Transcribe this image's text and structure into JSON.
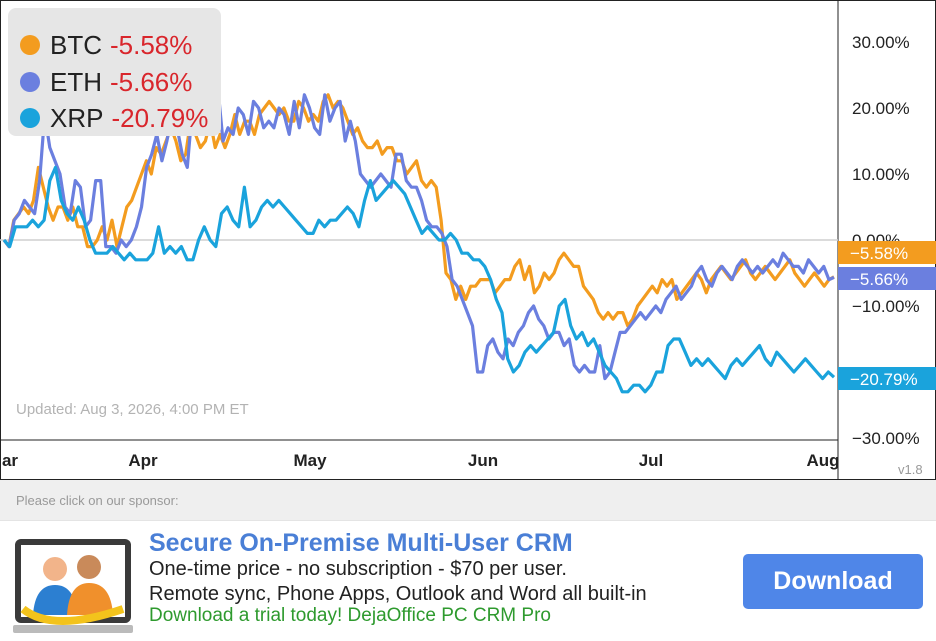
{
  "chart_data": {
    "type": "line",
    "x_tick_labels": [
      "ar",
      "Apr",
      "May",
      "Jun",
      "Jul",
      "Aug"
    ],
    "y_tick_labels": [
      "30.00%",
      "20.00%",
      "10.00%",
      "0.00%",
      "−10.00%",
      "−30.00%"
    ],
    "ylim": [
      -30,
      30
    ],
    "y_ticks": [
      30,
      20,
      10,
      0,
      -10,
      -30
    ],
    "reference_line": 0,
    "legend_placement": "top-left",
    "series": [
      {
        "name": "BTC",
        "color": "#f39c1f",
        "final_label": "−5.58%",
        "legend_value": "-5.58%",
        "values": [
          0,
          -1,
          3,
          4,
          5,
          4,
          6,
          11,
          8,
          5,
          3,
          5,
          5,
          3,
          5,
          2,
          2,
          -1,
          -1,
          0,
          2,
          0,
          3,
          -1,
          2,
          5,
          6,
          8,
          10,
          12,
          10,
          14,
          13,
          15,
          17,
          15,
          12,
          13,
          18,
          16,
          14,
          15,
          18,
          14,
          16,
          14,
          16,
          19,
          16,
          18,
          18,
          16,
          19,
          20,
          21,
          20,
          19,
          20,
          18,
          18,
          21,
          20,
          18,
          19,
          18,
          21,
          22,
          20,
          21,
          20,
          18,
          16,
          17,
          15,
          14,
          14,
          15,
          13,
          14,
          14,
          12,
          12,
          10,
          11,
          12,
          9,
          8,
          9,
          8,
          3,
          -5,
          -6,
          -9,
          -7,
          -9,
          -7,
          -7,
          -6,
          -6,
          -6,
          -8,
          -7,
          -6,
          -6,
          -4,
          -3,
          -6,
          -4,
          -8,
          -7,
          -5,
          -6,
          -5,
          -3,
          -2,
          -3,
          -4,
          -4,
          -7,
          -8,
          -9,
          -11,
          -12,
          -11,
          -12,
          -11,
          -11,
          -13,
          -12,
          -10,
          -9,
          -8,
          -7,
          -8,
          -6,
          -7,
          -6,
          -9,
          -8,
          -7,
          -6,
          -5,
          -6,
          -8,
          -6,
          -5,
          -4,
          -5,
          -6,
          -5,
          -4,
          -3,
          -5,
          -6,
          -5,
          -4,
          -5,
          -6,
          -5,
          -4,
          -3,
          -5,
          -6,
          -7,
          -6,
          -5,
          -6,
          -7,
          -6,
          -5.58
        ]
      },
      {
        "name": "ETH",
        "color": "#6b7fdf",
        "final_label": "−5.66%",
        "legend_value": "-5.66%",
        "values": [
          0,
          -1,
          3,
          4,
          6,
          5,
          4,
          9,
          19,
          14,
          12,
          10,
          5,
          4,
          9,
          8,
          2,
          3,
          9,
          9,
          -1,
          -1,
          -2,
          0,
          -1,
          0,
          2,
          5,
          11,
          13,
          16,
          12,
          15,
          19,
          17,
          13,
          11,
          20,
          17,
          22,
          20,
          17,
          23,
          15,
          17,
          16,
          20,
          19,
          16,
          21,
          20,
          17,
          18,
          17,
          20,
          19,
          16,
          21,
          17,
          22,
          20,
          17,
          16,
          22,
          18,
          20,
          21,
          15,
          18,
          15,
          10,
          9,
          8,
          9,
          10,
          9,
          8,
          13,
          13,
          9,
          8,
          8,
          6,
          3,
          2,
          2,
          1,
          -1,
          -6,
          -7,
          -9,
          -11,
          -13,
          -20,
          -20,
          -16,
          -15,
          -17,
          -18,
          -15,
          -16,
          -14,
          -13,
          -11,
          -10,
          -12,
          -13,
          -15,
          -14,
          -14,
          -16,
          -15,
          -19,
          -20,
          -19,
          -20,
          -20,
          -16,
          -21,
          -20,
          -17,
          -14,
          -14,
          -13,
          -12,
          -11,
          -12,
          -11,
          -10,
          -11,
          -9,
          -8,
          -7,
          -9,
          -8,
          -7,
          -5,
          -4,
          -6,
          -7,
          -5,
          -4,
          -5,
          -6,
          -4,
          -3,
          -4,
          -5,
          -4,
          -5,
          -4,
          -3,
          -4,
          -2,
          -3,
          -4,
          -4,
          -5,
          -3,
          -4,
          -5,
          -4,
          -6,
          -5.66
        ]
      },
      {
        "name": "XRP",
        "color": "#1aa3dc",
        "final_label": "−20.79%",
        "legend_value": "-20.79%",
        "values": [
          0,
          -1,
          2,
          2,
          2,
          3,
          2,
          3,
          9,
          11,
          6,
          4,
          3,
          5,
          3,
          0,
          -2,
          -2,
          -2,
          -1,
          -2,
          -3,
          -2,
          -3,
          -3,
          -3,
          -2,
          2,
          -2,
          -1,
          -2,
          -1,
          -3,
          -3,
          0,
          2,
          0,
          -1,
          4,
          5,
          3,
          2,
          8,
          2,
          3,
          5,
          6,
          5,
          6,
          5,
          4,
          3,
          2,
          1,
          1,
          3,
          2,
          3,
          3,
          4,
          5,
          4,
          2,
          6,
          9,
          6,
          7,
          8,
          9,
          8,
          7,
          5,
          3,
          1,
          2,
          1,
          0,
          0,
          1,
          0,
          -2,
          -2,
          -3,
          -3,
          -4,
          -6,
          -9,
          -11,
          -18,
          -20,
          -19,
          -17,
          -16,
          -17,
          -16,
          -15,
          -14,
          -10,
          -9,
          -13,
          -15,
          -14,
          -16,
          -15,
          -17,
          -19,
          -20,
          -21,
          -23,
          -23,
          -22,
          -22,
          -23,
          -22,
          -20,
          -20,
          -16,
          -15,
          -15,
          -17,
          -19,
          -18,
          -19,
          -18,
          -19,
          -20,
          -21,
          -19,
          -18,
          -19,
          -18,
          -17,
          -16,
          -18,
          -19,
          -17,
          -18,
          -19,
          -20,
          -19,
          -18,
          -19,
          -20,
          -21,
          -20,
          -20.79
        ]
      }
    ]
  },
  "legend": {
    "items": [
      {
        "name": "BTC",
        "value": "-5.58%"
      },
      {
        "name": "ETH",
        "value": "-5.66%"
      },
      {
        "name": "XRP",
        "value": "-20.79%"
      }
    ]
  },
  "updated_text": "Updated: Aug 3, 2026, 4:00 PM ET",
  "version": "v1.8",
  "sponsor": {
    "label": "Please click on our sponsor:",
    "title": "Secure On-Premise Multi-User CRM",
    "line1": "One-time price - no subscription - $70 per user.",
    "line2": "Remote sync, Phone Apps, Outlook and Word all built-in",
    "line3": "Download a trial today! DejaOffice PC CRM Pro",
    "button": "Download"
  },
  "icons": {
    "ad_icon": "crm-people-icon"
  }
}
